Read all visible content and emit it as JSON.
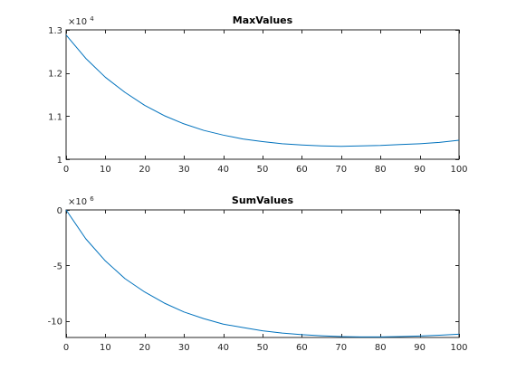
{
  "figure": {
    "background": "#ffffff",
    "axis_color": "#262626",
    "line_color": "#0072bd"
  },
  "chart_data": [
    {
      "type": "line",
      "title": "MaxValues",
      "xlabel": "",
      "ylabel": "",
      "xlim": [
        0,
        100
      ],
      "ylim": [
        1.0,
        1.3
      ],
      "exponent_label": "×10",
      "exponent_power": "4",
      "xticks": [
        0,
        10,
        20,
        30,
        40,
        50,
        60,
        70,
        80,
        90,
        100
      ],
      "xtick_labels": [
        "0",
        "10",
        "20",
        "30",
        "40",
        "50",
        "60",
        "70",
        "80",
        "90",
        "100"
      ],
      "yticks": [
        1.0,
        1.1,
        1.2,
        1.3
      ],
      "ytick_labels": [
        "1",
        "1.1",
        "1.2",
        "1.3"
      ],
      "grid": false,
      "series": [
        {
          "x": [
            0,
            5,
            10,
            15,
            20,
            25,
            30,
            35,
            40,
            45,
            50,
            55,
            60,
            65,
            70,
            75,
            80,
            85,
            90,
            95,
            100
          ],
          "y": [
            1.288,
            1.234,
            1.19,
            1.155,
            1.125,
            1.101,
            1.082,
            1.067,
            1.056,
            1.047,
            1.041,
            1.036,
            1.033,
            1.031,
            1.03,
            1.031,
            1.032,
            1.034,
            1.036,
            1.039,
            1.044
          ]
        }
      ]
    },
    {
      "type": "line",
      "title": "SumValues",
      "xlabel": "",
      "ylabel": "",
      "xlim": [
        0,
        100
      ],
      "ylim": [
        -11.5,
        0
      ],
      "exponent_label": "×10",
      "exponent_power": "6",
      "xticks": [
        0,
        10,
        20,
        30,
        40,
        50,
        60,
        70,
        80,
        90,
        100
      ],
      "xtick_labels": [
        "0",
        "10",
        "20",
        "30",
        "40",
        "50",
        "60",
        "70",
        "80",
        "90",
        "100"
      ],
      "yticks": [
        -10,
        -5,
        0
      ],
      "ytick_labels": [
        "-10",
        "-5",
        "0"
      ],
      "grid": false,
      "series": [
        {
          "x": [
            0,
            5,
            10,
            15,
            20,
            25,
            30,
            35,
            40,
            45,
            50,
            55,
            60,
            65,
            70,
            75,
            80,
            85,
            90,
            95,
            100
          ],
          "y": [
            0.0,
            -2.6,
            -4.6,
            -6.2,
            -7.4,
            -8.4,
            -9.2,
            -9.8,
            -10.3,
            -10.6,
            -10.9,
            -11.1,
            -11.25,
            -11.35,
            -11.42,
            -11.45,
            -11.45,
            -11.42,
            -11.37,
            -11.3,
            -11.2
          ]
        }
      ]
    }
  ]
}
